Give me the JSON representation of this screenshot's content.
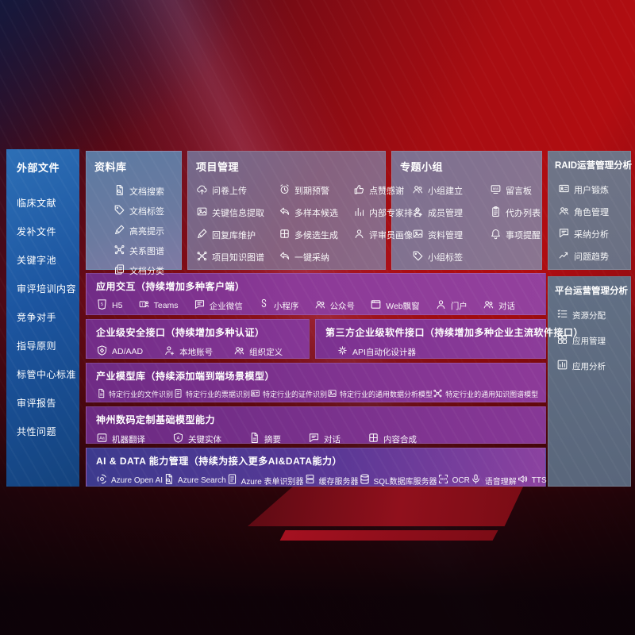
{
  "colors": {
    "bg_red": "#a90d12",
    "bg_dark_navy": "#141c38",
    "sidebar_blue_top": "#2d6fb6",
    "sidebar_blue_bottom": "#14437e",
    "knowledge_box_blue": "#5f7da3",
    "project_box_mauve": "#7d6e8c",
    "topic_box_mauve": "#837490",
    "raid_box_gray": "#6e7487",
    "platform_box_slate": "#5e6c81",
    "row_purple": "#7e2e90",
    "row_purple_light": "#93419d",
    "row_indigo": "#3d3a8e",
    "text": "#ffffff"
  },
  "sidebar": {
    "title": "外部文件",
    "items": [
      "临床文献",
      "发补文件",
      "关键字池",
      "审评培训内容",
      "竞争对手",
      "指导原则",
      "标管中心标准",
      "审评报告",
      "共性问题"
    ]
  },
  "top_boxes": [
    {
      "key": "knowledge-base",
      "title": "资料库",
      "layout": "col",
      "items": [
        {
          "label": "文档搜索",
          "icon": "doc-search-icon"
        },
        {
          "label": "文档标签",
          "icon": "tag-icon"
        },
        {
          "label": "高亮提示",
          "icon": "highlight-pencil-icon"
        },
        {
          "label": "关系图谱",
          "icon": "relation-graph-icon"
        },
        {
          "label": "文档分类",
          "icon": "doc-copy-icon"
        }
      ]
    },
    {
      "key": "project-management",
      "title": "项目管理",
      "layout": "grid3",
      "items": [
        {
          "label": "问卷上传",
          "icon": "cloud-upload-icon"
        },
        {
          "label": "到期预警",
          "icon": "alarm-icon"
        },
        {
          "label": "点赞感谢",
          "icon": "thumbs-up-icon"
        },
        {
          "label": "关键信息提取",
          "icon": "image-extract-icon"
        },
        {
          "label": "多样本候选",
          "icon": "reply-arrow-icon"
        },
        {
          "label": "内部专家排名",
          "icon": "ranking-bars-icon"
        },
        {
          "label": "回复库维护",
          "icon": "pen-icon"
        },
        {
          "label": "多候选生成",
          "icon": "puzzle-icon"
        },
        {
          "label": "评审员画像",
          "icon": "person-icon"
        },
        {
          "label": "项目知识图谱",
          "icon": "relation-graph-icon"
        },
        {
          "label": "一键采纳",
          "icon": "adopt-arrow-icon"
        }
      ]
    },
    {
      "key": "topic-group",
      "title": "专题小组",
      "layout": "grid2",
      "items": [
        {
          "label": "小组建立",
          "icon": "people-icon"
        },
        {
          "label": "留言板",
          "icon": "bbs-board-icon"
        },
        {
          "label": "成员管理",
          "icon": "person-add-icon"
        },
        {
          "label": "代办列表",
          "icon": "clipboard-icon"
        },
        {
          "label": "资料管理",
          "icon": "album-icon"
        },
        {
          "label": "事项提醒",
          "icon": "bell-icon"
        },
        {
          "label": "小组标签",
          "icon": "tag-icon"
        }
      ]
    },
    {
      "key": "raid-analysis",
      "title": "RAID运营管理分析",
      "layout": "col",
      "items": [
        {
          "label": "用户锻炼",
          "icon": "id-card-icon"
        },
        {
          "label": "角色管理",
          "icon": "people-icon"
        },
        {
          "label": "采纳分析",
          "icon": "chat-analysis-icon"
        },
        {
          "label": "问题趋势",
          "icon": "trend-icon"
        }
      ]
    }
  ],
  "right_box": {
    "key": "platform-analysis",
    "title": "平台运营管理分析",
    "items": [
      {
        "label": "资源分配",
        "icon": "checklist-icon"
      },
      {
        "label": "应用管理",
        "icon": "app-grid-icon"
      },
      {
        "label": "应用分析",
        "icon": "chart-box-icon"
      }
    ]
  },
  "rows": [
    {
      "key": "app-interaction",
      "title": "应用交互（持续增加多种客户端）",
      "items": [
        {
          "label": "H5",
          "icon": "html5-icon"
        },
        {
          "label": "Teams",
          "icon": "teams-icon"
        },
        {
          "label": "企业微信",
          "icon": "wechat-work-icon"
        },
        {
          "label": "小程序",
          "icon": "miniprogram-icon"
        },
        {
          "label": "公众号",
          "icon": "official-account-icon"
        },
        {
          "label": "Web飘窗",
          "icon": "web-window-icon"
        },
        {
          "label": "门户",
          "icon": "portal-person-icon"
        },
        {
          "label": "对话",
          "icon": "dialog-people-icon"
        }
      ]
    },
    {
      "key": "enterprise-security",
      "title": "企业级安全接口（持续增加多种认证）",
      "items": [
        {
          "label": "AD/AAD",
          "icon": "shield-icon"
        },
        {
          "label": "本地账号",
          "icon": "local-account-icon"
        },
        {
          "label": "组织定义",
          "icon": "org-people-icon"
        }
      ]
    },
    {
      "key": "third-party-interface",
      "title": "第三方企业级软件接口（持续增加多种企业主流软件接口）",
      "items": [
        {
          "label": "API自动化设计器",
          "icon": "api-gear-icon"
        }
      ]
    },
    {
      "key": "industry-models",
      "title": "产业模型库（持续添加端到端场景模型）",
      "items": [
        {
          "label": "特定行业的文件识别",
          "icon": "doc-icon"
        },
        {
          "label": "特定行业的票据识别",
          "icon": "form-doc-icon"
        },
        {
          "label": "特定行业的证件识别",
          "icon": "id-card-icon"
        },
        {
          "label": "特定行业的通用数据分析模型",
          "icon": "image-extract-icon"
        },
        {
          "label": "特定行业的通用知识图谱模型",
          "icon": "relation-graph-icon"
        }
      ]
    },
    {
      "key": "dc-base-models",
      "title": "神州数码定制基础模型能力",
      "items": [
        {
          "label": "机器翻译",
          "icon": "translate-icon"
        },
        {
          "label": "关键实体",
          "icon": "entity-shield-icon"
        },
        {
          "label": "摘要",
          "icon": "doc-icon"
        },
        {
          "label": "对话",
          "icon": "chat-bubble-icon"
        },
        {
          "label": "内容合成",
          "icon": "puzzle-icon"
        }
      ]
    },
    {
      "key": "ai-data-management",
      "title": "AI & DATA 能力管理（持续为接入更多AI&DATA能力）",
      "items": [
        {
          "label": "Azure Open AI",
          "icon": "openai-icon"
        },
        {
          "label": "Azure Search",
          "icon": "doc-search-icon"
        },
        {
          "label": "Azure 表单识别器",
          "icon": "form-doc-icon"
        },
        {
          "label": "缓存服务器",
          "icon": "cache-server-icon"
        },
        {
          "label": "SQL数据库服务器",
          "icon": "sql-db-icon"
        },
        {
          "label": "OCR",
          "icon": "ocr-scan-icon"
        },
        {
          "label": "语音理解",
          "icon": "speech-mic-icon"
        },
        {
          "label": "TTS",
          "icon": "tts-speaker-icon"
        }
      ]
    }
  ]
}
